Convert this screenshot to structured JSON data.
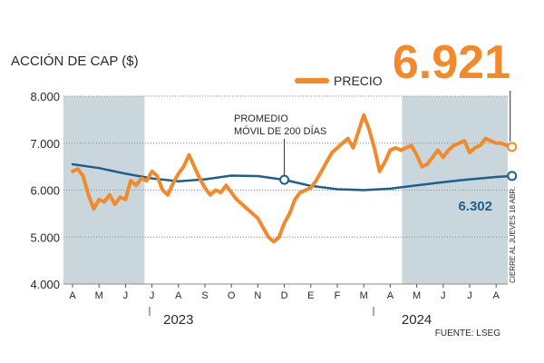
{
  "chart_data": {
    "type": "line",
    "title": "ACCIÓN DE CAP ($)",
    "source": "FUENTE: LSEG",
    "y_ticks": [
      "8.000",
      "7.000",
      "6.000",
      "5.000",
      "4.000"
    ],
    "y_tick_values": [
      8000,
      7000,
      6000,
      5000,
      4000
    ],
    "ylim": [
      4000,
      8000
    ],
    "x_tick_labels": [
      "A",
      "M",
      "J",
      "J",
      "A",
      "S",
      "O",
      "N",
      "D",
      "E",
      "F",
      "M",
      "A",
      "M",
      "J",
      "J",
      "A"
    ],
    "years": [
      {
        "label": "2023",
        "center_index": 4
      },
      {
        "label": "2024",
        "center_index": 13
      }
    ],
    "shaded_ranges": [
      [
        0,
        2.72
      ],
      [
        12.45,
        16.55
      ]
    ],
    "legend": {
      "price_label": "PRECIO"
    },
    "series": [
      {
        "name": "PRECIO",
        "color": "#f08a2c",
        "x": [
          0,
          0.2,
          0.4,
          0.6,
          0.8,
          1.0,
          1.2,
          1.4,
          1.6,
          1.8,
          2.0,
          2.2,
          2.4,
          2.6,
          2.8,
          3.0,
          3.2,
          3.4,
          3.6,
          3.8,
          4.0,
          4.2,
          4.4,
          4.6,
          4.8,
          5.0,
          5.2,
          5.4,
          5.6,
          5.8,
          6.0,
          6.2,
          6.4,
          6.6,
          6.8,
          7.0,
          7.2,
          7.4,
          7.6,
          7.8,
          8.0,
          8.2,
          8.4,
          8.6,
          8.8,
          9.0,
          9.2,
          9.4,
          9.6,
          9.8,
          10.0,
          10.2,
          10.4,
          10.6,
          10.8,
          11.0,
          11.2,
          11.4,
          11.6,
          11.8,
          12.0,
          12.2,
          12.4,
          12.6,
          12.8,
          13.0,
          13.2,
          13.4,
          13.6,
          13.8,
          14.0,
          14.2,
          14.4,
          14.6,
          14.8,
          15.0,
          15.2,
          15.4,
          15.6,
          15.8,
          16.0,
          16.2,
          16.4,
          16.6
        ],
        "values": [
          6400,
          6450,
          6300,
          5900,
          5600,
          5800,
          5750,
          5900,
          5700,
          5850,
          5800,
          6200,
          6100,
          6250,
          6200,
          6400,
          6300,
          6000,
          5900,
          6150,
          6350,
          6500,
          6750,
          6500,
          6250,
          6050,
          5900,
          6000,
          5950,
          6100,
          5950,
          5800,
          5700,
          5600,
          5500,
          5400,
          5200,
          5000,
          4900,
          5000,
          5300,
          5500,
          5800,
          5950,
          6000,
          6050,
          6200,
          6400,
          6600,
          6800,
          6900,
          7000,
          7100,
          6900,
          7250,
          7600,
          7300,
          6900,
          6400,
          6600,
          6850,
          6900,
          6850,
          6900,
          6950,
          6750,
          6500,
          6550,
          6700,
          6850,
          6700,
          6850,
          6950,
          7000,
          7050,
          6800,
          6900,
          6950,
          7100,
          7050,
          7000,
          7000,
          6950,
          6921
        ]
      },
      {
        "name": "PROMEDIO MÓVIL DE 200 DÍAS",
        "color": "#1f5f8b",
        "x": [
          0,
          1,
          2,
          3,
          4,
          5,
          6,
          7,
          8,
          9,
          10,
          11,
          12,
          13,
          14,
          15,
          16,
          16.6
        ],
        "values": [
          6550,
          6470,
          6350,
          6250,
          6190,
          6230,
          6310,
          6300,
          6220,
          6090,
          6020,
          6000,
          6030,
          6100,
          6170,
          6230,
          6280,
          6302
        ]
      }
    ],
    "annotations": {
      "ma_line1": "PROMEDIO",
      "ma_line2": "MÓVIL DE 200 DÍAS",
      "last_price": "6.921",
      "last_ma": "6.302",
      "closing_note": "CIERRE AL JUEVES 18 ABR."
    }
  }
}
